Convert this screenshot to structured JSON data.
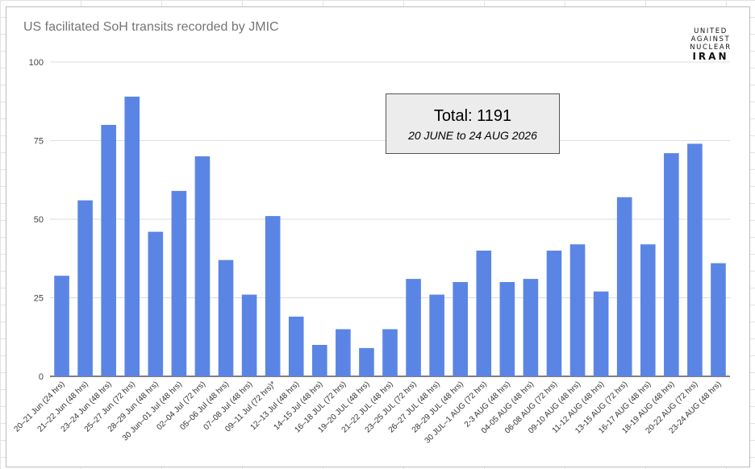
{
  "chart_data": {
    "type": "bar",
    "title": "US facilitated SoH transits recorded by JMIC",
    "categories": [
      "20–21 Jun (24 hrs)",
      "21–22 Jun (48 hrs)",
      "23–24 Jun (48 hrs)",
      "25–27 Jun (72 hrs)",
      "28–29 Jun (48 hrs)",
      "30 Jun–01 Jul (48 hrs)",
      "02–04 Jul (72 hrs)",
      "05–06 Jul (48 hrs)",
      "07–08 Jul (48 hrs)",
      "09–11 Jul (72 hrs)*",
      "12–13 Jul (48 hrs)",
      "14–15 Jul (48 hrs)",
      "16–18 JUL (72 hrs)",
      "19–20 JUL (48 hrs)",
      "21–22 JUL (48 hrs)",
      "23–25 JUL (72 hrs)",
      "26–27 JUL (48 hrs)",
      "28–29 JUL (48 hrs)",
      "30 JUL–1 AUG (72 hrs)",
      "2-3 AUG (48 hrs)",
      "04-05 AUG (48 hrs)",
      "06-08 AUG (72 hrs)",
      "09-10 AUG (48 hrs)",
      "11-12 AUG (48 hrs)",
      "13-15 AUG (72 hrs)",
      "16-17 AUG (48 hrs)",
      "18-19 AUG (48 hrs)",
      "20-22 AUG (72 hrs)",
      "23-24 AUG (48 hrs)"
    ],
    "series": [
      {
        "values": [
          32,
          56,
          80,
          89,
          46,
          59,
          70,
          37,
          26,
          51,
          19,
          10,
          15,
          9,
          15,
          31,
          26,
          30,
          40,
          30,
          31,
          40,
          42,
          27,
          57,
          42,
          71,
          74,
          36
        ],
        "color": "#5b85e5"
      }
    ],
    "yticks": [
      "0",
      "25",
      "50",
      "75",
      "100"
    ],
    "ylim": [
      0,
      100
    ],
    "xlabel": "",
    "ylabel": "",
    "grid": true,
    "legend": "none"
  },
  "annotation": {
    "total_label": "Total: 1191",
    "date_range": "20 JUNE to 24 AUG 2026"
  },
  "logo": {
    "lines": [
      "UNITED",
      "AGAINST",
      "NUCLEAR",
      "IRAN"
    ]
  }
}
